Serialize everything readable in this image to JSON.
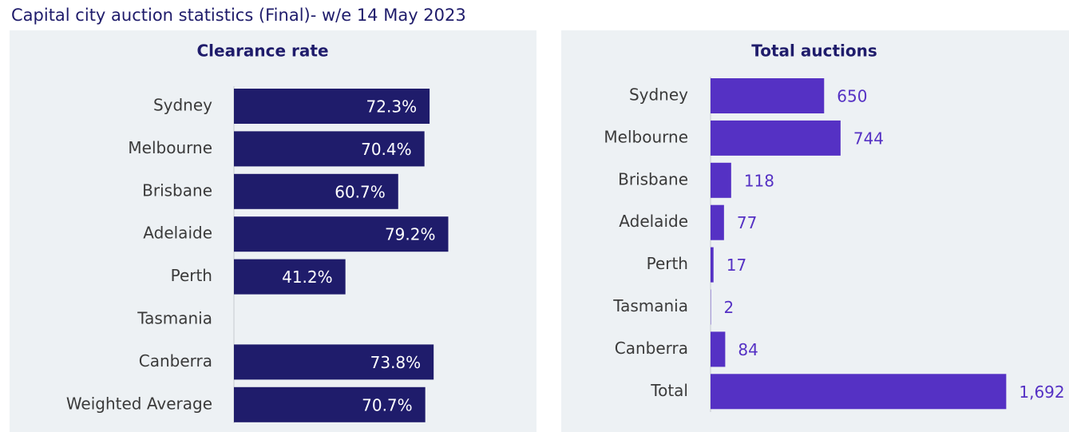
{
  "title": "Capital city auction statistics (Final)- w/e 14 May 2023",
  "chart_data": [
    {
      "type": "bar",
      "orientation": "horizontal",
      "title": "Clearance rate",
      "categories": [
        "Sydney",
        "Melbourne",
        "Brisbane",
        "Adelaide",
        "Perth",
        "Tasmania",
        "Canberra",
        "Weighted Average"
      ],
      "values": [
        72.3,
        70.4,
        60.7,
        79.2,
        41.2,
        null,
        73.8,
        70.7
      ],
      "value_labels": [
        "72.3%",
        "70.4%",
        "60.7%",
        "79.2%",
        "41.2%",
        null,
        "73.8%",
        "70.7%"
      ],
      "color": "#1f1c6b",
      "xlim": [
        0,
        100
      ]
    },
    {
      "type": "bar",
      "orientation": "horizontal",
      "title": "Total auctions",
      "categories": [
        "Sydney",
        "Melbourne",
        "Brisbane",
        "Adelaide",
        "Perth",
        "Tasmania",
        "Canberra",
        "Total"
      ],
      "values": [
        650,
        744,
        118,
        77,
        17,
        2,
        84,
        1692
      ],
      "value_labels": [
        "650",
        "744",
        "118",
        "77",
        "17",
        "2",
        "84",
        "1,692"
      ],
      "color": "#5531c4",
      "xlim": [
        0,
        1800
      ]
    }
  ]
}
